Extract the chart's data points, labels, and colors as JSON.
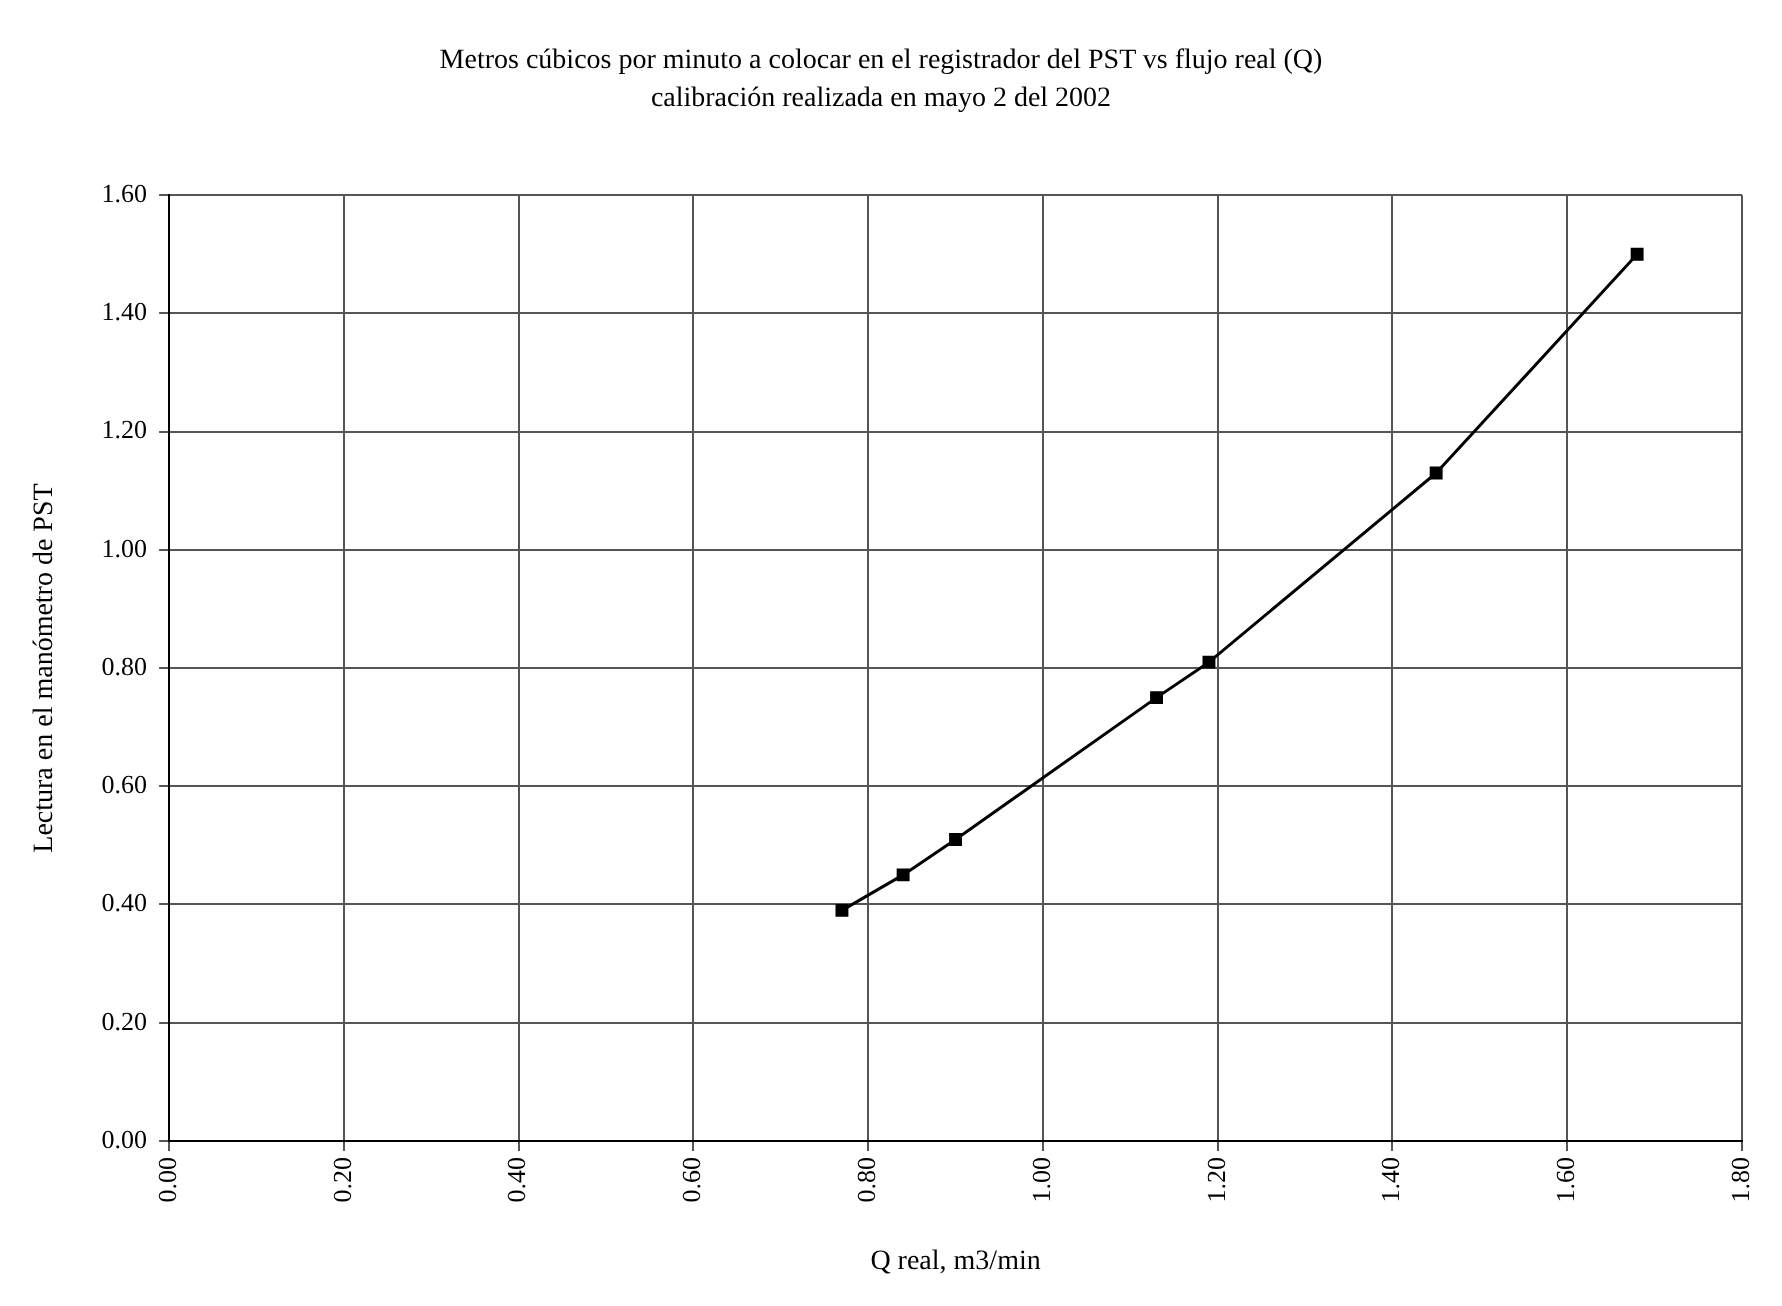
{
  "chart_data": {
    "type": "line",
    "title": "Metros cúbicos por minuto a colocar en el registrador del PST vs flujo real (Q)",
    "subtitle": "calibración realizada en mayo 2 del 2002",
    "xlabel": "Q real, m3/min",
    "ylabel": "Lectura en el manómetro de PST",
    "x": [
      0.77,
      0.84,
      0.9,
      1.13,
      1.19,
      1.45,
      1.68
    ],
    "series": [
      {
        "color": "#000000",
        "values": [
          0.39,
          0.45,
          0.51,
          0.75,
          0.81,
          1.13,
          1.5
        ]
      }
    ],
    "xlim": [
      0,
      1.8
    ],
    "xticks": [
      {
        "value": 0,
        "label": "0.00"
      },
      {
        "value": 0.2,
        "label": "0.20"
      },
      {
        "value": 0.4,
        "label": "0.40"
      },
      {
        "value": 0.6,
        "label": "0.60"
      },
      {
        "value": 0.8,
        "label": "0.80"
      },
      {
        "value": 1,
        "label": "1.00"
      },
      {
        "value": 1.2,
        "label": "1.20"
      },
      {
        "value": 1.4,
        "label": "1.40"
      },
      {
        "value": 1.6,
        "label": "1.60"
      },
      {
        "value": 1.8,
        "label": "1.80"
      }
    ],
    "ylim": [
      0,
      1.6
    ],
    "yticks": [
      {
        "value": 0,
        "label": "0.00"
      },
      {
        "value": 0.2,
        "label": "0.20"
      },
      {
        "value": 0.4,
        "label": "0.40"
      },
      {
        "value": 0.6,
        "label": "0.60"
      },
      {
        "value": 0.8,
        "label": "0.80"
      },
      {
        "value": 1,
        "label": "1.00"
      },
      {
        "value": 1.2,
        "label": "1.20"
      },
      {
        "value": 1.4,
        "label": "1.40"
      },
      {
        "value": 1.6,
        "label": "1.60"
      }
    ],
    "grid": true,
    "legend": false,
    "marker": "square",
    "line_style": "solid"
  }
}
